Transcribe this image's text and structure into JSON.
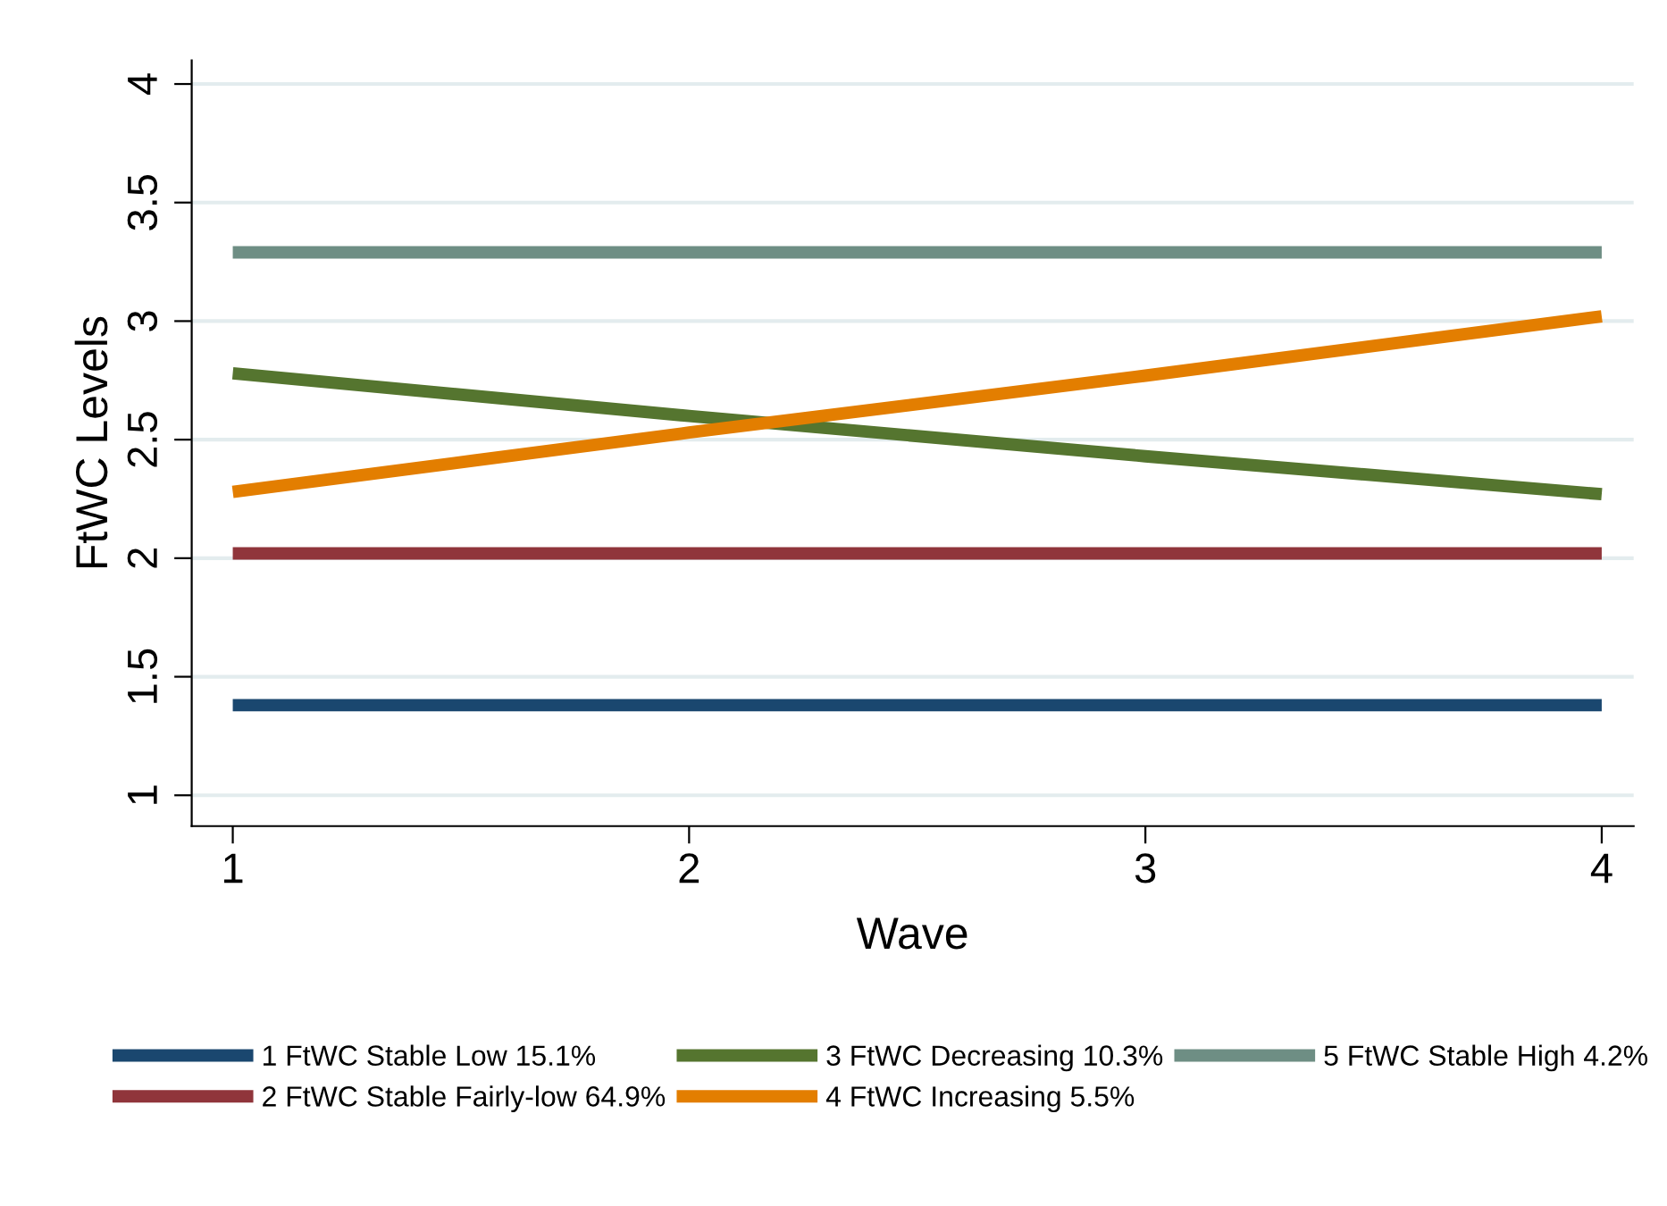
{
  "chart_data": {
    "type": "line",
    "xlabel": "Wave",
    "ylabel": "FtWC Levels",
    "x": [
      1,
      2,
      3,
      4
    ],
    "series": [
      {
        "name": "1 FtWC Stable Low 15.1%",
        "color": "#1a476f",
        "values": [
          1.38,
          1.38,
          1.38,
          1.38
        ]
      },
      {
        "name": "2 FtWC Stable Fairly-low 64.9%",
        "color": "#90353b",
        "values": [
          2.02,
          2.02,
          2.02,
          2.02
        ]
      },
      {
        "name": "3 FtWC Decreasing 10.3%",
        "color": "#55752f",
        "values": [
          2.78,
          2.6,
          2.43,
          2.27
        ]
      },
      {
        "name": "4 FtWC Increasing 5.5%",
        "color": "#e37e00",
        "values": [
          2.28,
          2.53,
          2.77,
          3.02
        ]
      },
      {
        "name": "5 FtWC Stable High 4.2%",
        "color": "#6e8e84",
        "values": [
          3.29,
          3.29,
          3.29,
          3.29
        ]
      }
    ],
    "xlim": [
      0.91,
      4.07
    ],
    "ylim": [
      0.87,
      4.1
    ],
    "xticks": [
      1,
      2,
      3,
      4
    ],
    "yticks": [
      1,
      1.5,
      2,
      2.5,
      3,
      3.5,
      4
    ],
    "grid": "y",
    "legend": "bottom",
    "marker": "none",
    "line_style": "solid"
  }
}
